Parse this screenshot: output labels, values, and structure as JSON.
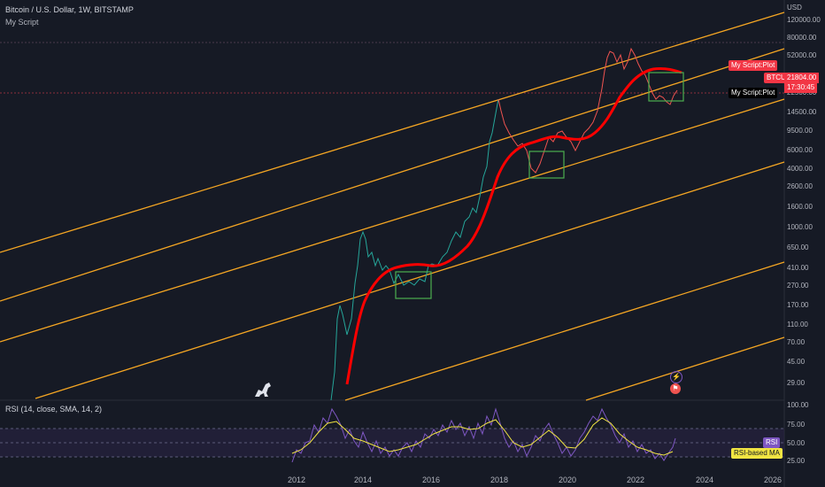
{
  "header": {
    "title": "Bitcoin / U.S. Dollar, 1W, BITSTAMP",
    "indicator": "My Script"
  },
  "axis": {
    "currency": "USD",
    "price_ticks": [
      "120000.00",
      "80000.00",
      "52000.00",
      "22500.00",
      "14500.00",
      "9500.00",
      "6000.00",
      "4000.00",
      "2600.00",
      "1600.00",
      "1000.00",
      "650.00",
      "410.00",
      "270.00",
      "170.00",
      "110.00",
      "70.00",
      "45.00",
      "29.00"
    ],
    "rsi_ticks": [
      "100.00",
      "75.00",
      "50.00",
      "25.00"
    ],
    "years": [
      "2012",
      "2014",
      "2016",
      "2018",
      "2020",
      "2022",
      "2024",
      "2026"
    ]
  },
  "tags": {
    "my_script_plot_red": "My Script:Plot",
    "btcusd": "BTCUSD",
    "price": "21804.00",
    "countdown": "17:30:45",
    "my_script_plot_black": "My Script:Plot",
    "rsi": "RSI",
    "rsi_ma": "RSI-based MA"
  },
  "rsi": {
    "title": "RSI (14, close, SMA, 14, 2)"
  },
  "colors": {
    "background": "#161a25",
    "channel": "#f5a623",
    "red_curve": "#ff0000",
    "price_up": "#26a69a",
    "price_down": "#ef5350",
    "box": "#4caf50",
    "rsi_line": "#7e57c2",
    "rsi_ma": "#f0e442"
  },
  "icons": {
    "lightning": "lightning-icon",
    "flag": "us-flag-icon",
    "logo": "tradingview-dino-icon"
  }
}
